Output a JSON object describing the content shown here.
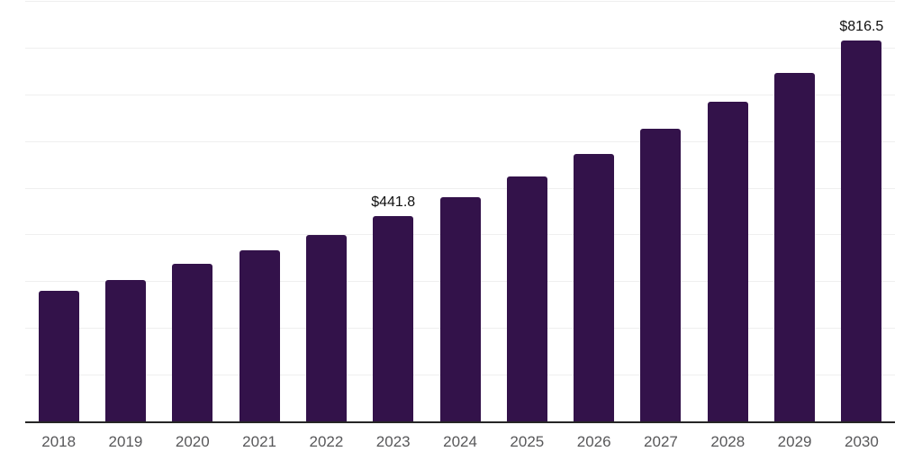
{
  "chart_data": {
    "type": "bar",
    "title": "",
    "xlabel": "",
    "ylabel": "",
    "categories": [
      "2018",
      "2019",
      "2020",
      "2021",
      "2022",
      "2023",
      "2024",
      "2025",
      "2026",
      "2027",
      "2028",
      "2029",
      "2030"
    ],
    "values": [
      282.0,
      304.5,
      339.0,
      367.5,
      400.5,
      441.8,
      482.3,
      526.6,
      574.9,
      627.6,
      685.2,
      748.1,
      816.5
    ],
    "annotations": [
      {
        "category": "2023",
        "text": "$441.8"
      },
      {
        "category": "2030",
        "text": "$816.5"
      }
    ],
    "ylim": [
      0,
      900
    ],
    "grid_step": 100,
    "grid": true,
    "legend_position": "none"
  },
  "colors": {
    "bar": "#33124a",
    "axis_line": "#262626",
    "gridline": "#efefef",
    "tick_label": "#58585a",
    "data_label": "#111111",
    "background": "#ffffff"
  }
}
